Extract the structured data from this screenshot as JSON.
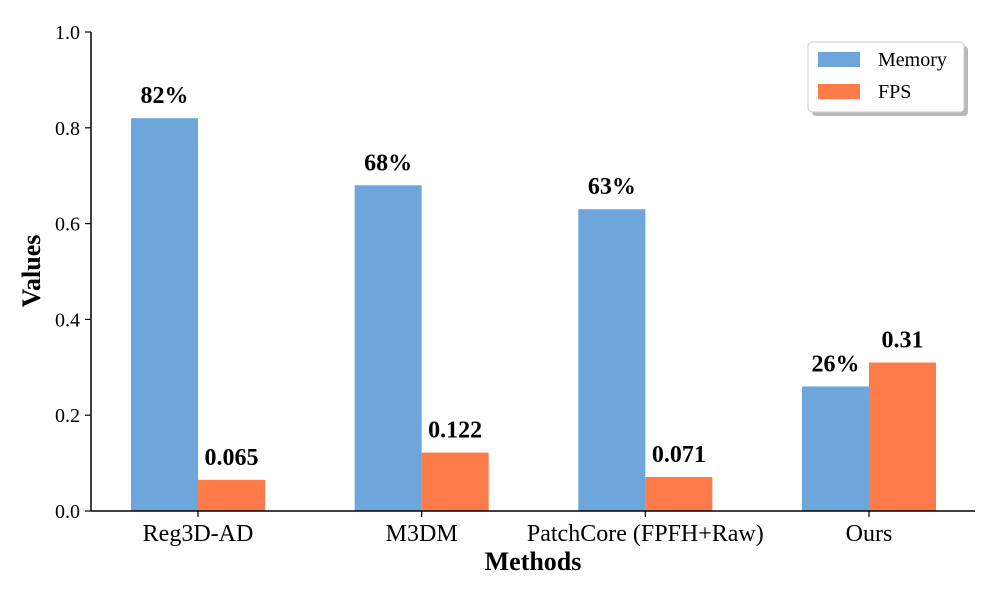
{
  "chart_data": {
    "type": "bar",
    "title": "",
    "xlabel": "Methods",
    "ylabel": "Values",
    "ylim": [
      0,
      1.0
    ],
    "yticks": [
      "0.0",
      "0.2",
      "0.4",
      "0.6",
      "0.8",
      "1.0"
    ],
    "yticks_values": [
      0,
      0.2,
      0.4,
      0.6,
      0.8,
      1.0
    ],
    "categories": [
      "Reg3D-AD",
      "M3DM",
      "PatchCore (FPFH+Raw)",
      "Ours"
    ],
    "series": [
      {
        "name": "Memory",
        "color": "#6ca6da",
        "values": [
          0.82,
          0.68,
          0.63,
          0.26
        ],
        "labels": [
          "82%",
          "68%",
          "63%",
          "26%"
        ]
      },
      {
        "name": "FPS",
        "color": "#ff7b4a",
        "values": [
          0.065,
          0.122,
          0.071,
          0.31
        ],
        "labels": [
          "0.065",
          "0.122",
          "0.071",
          "0.31"
        ]
      }
    ],
    "legend": {
      "position": "top-right",
      "entries": [
        "Memory",
        "FPS"
      ]
    },
    "grid": false
  }
}
